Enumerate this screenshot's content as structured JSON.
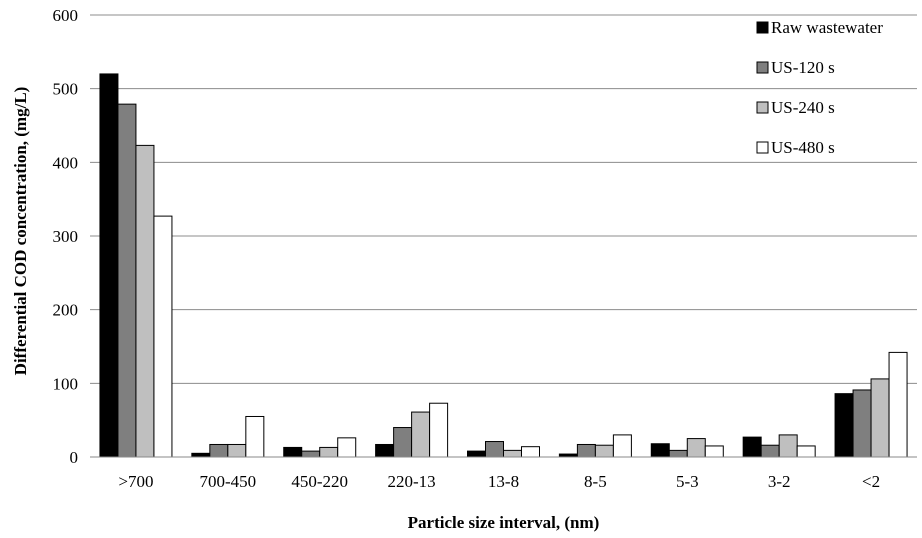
{
  "chart_data": {
    "type": "bar",
    "title": "",
    "xlabel": "Particle size interval, (nm)",
    "ylabel": "Differential COD concentration, (mg/L)",
    "ylim": [
      0,
      600
    ],
    "yticks": [
      0,
      100,
      200,
      300,
      400,
      500,
      600
    ],
    "grid": true,
    "legend_position": "top-right",
    "categories": [
      ">700",
      "700-450",
      "450-220",
      "220-13",
      "13-8",
      "8-5",
      "5-3",
      "3-2",
      "<2"
    ],
    "series": [
      {
        "name": "Raw wastewater",
        "color": "#000000",
        "values": [
          520,
          5,
          13,
          17,
          8,
          4,
          18,
          27,
          86
        ]
      },
      {
        "name": "US-120 s",
        "color": "#7f7f7f",
        "values": [
          479,
          17,
          8,
          40,
          21,
          17,
          9,
          16,
          91
        ]
      },
      {
        "name": "US-240 s",
        "color": "#bfbfbf",
        "values": [
          423,
          17,
          13,
          61,
          9,
          16,
          25,
          30,
          106
        ]
      },
      {
        "name": "US-480 s",
        "color": "#ffffff",
        "values": [
          327,
          55,
          26,
          73,
          14,
          30,
          15,
          15,
          142
        ]
      }
    ]
  }
}
